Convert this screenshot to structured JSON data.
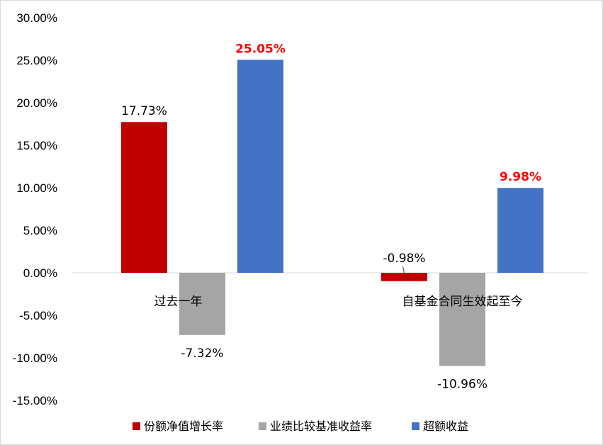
{
  "chart_data": {
    "type": "bar",
    "categories": [
      "过去一年",
      "自基金合同生效起至今"
    ],
    "series": [
      {
        "name": "份额净值增长率",
        "values": [
          17.73,
          -0.98
        ],
        "labels": [
          "17.73%",
          "-0.98%"
        ],
        "color": "#c00000",
        "label_highlight": false
      },
      {
        "name": "业绩比较基准收益率",
        "values": [
          -7.32,
          -10.96
        ],
        "labels": [
          "-7.32%",
          "-10.96%"
        ],
        "color": "#a5a5a5",
        "label_highlight": false
      },
      {
        "name": "超额收益",
        "values": [
          25.05,
          9.98
        ],
        "labels": [
          "25.05%",
          "9.98%"
        ],
        "color": "#4472c4",
        "label_highlight": true
      }
    ],
    "ylim": [
      -15,
      30
    ],
    "yticks": [
      30,
      25,
      20,
      15,
      10,
      5,
      0,
      -5,
      -10,
      -15
    ],
    "ytick_labels": [
      "30.00%",
      "25.00%",
      "20.00%",
      "15.00%",
      "10.00%",
      "5.00%",
      "0.00%",
      "-5.00%",
      "-10.00%",
      "-15.00%"
    ],
    "grid": false,
    "legend_position": "bottom",
    "highlight_color": "#ff0000",
    "title": "",
    "xlabel": "",
    "ylabel": ""
  }
}
